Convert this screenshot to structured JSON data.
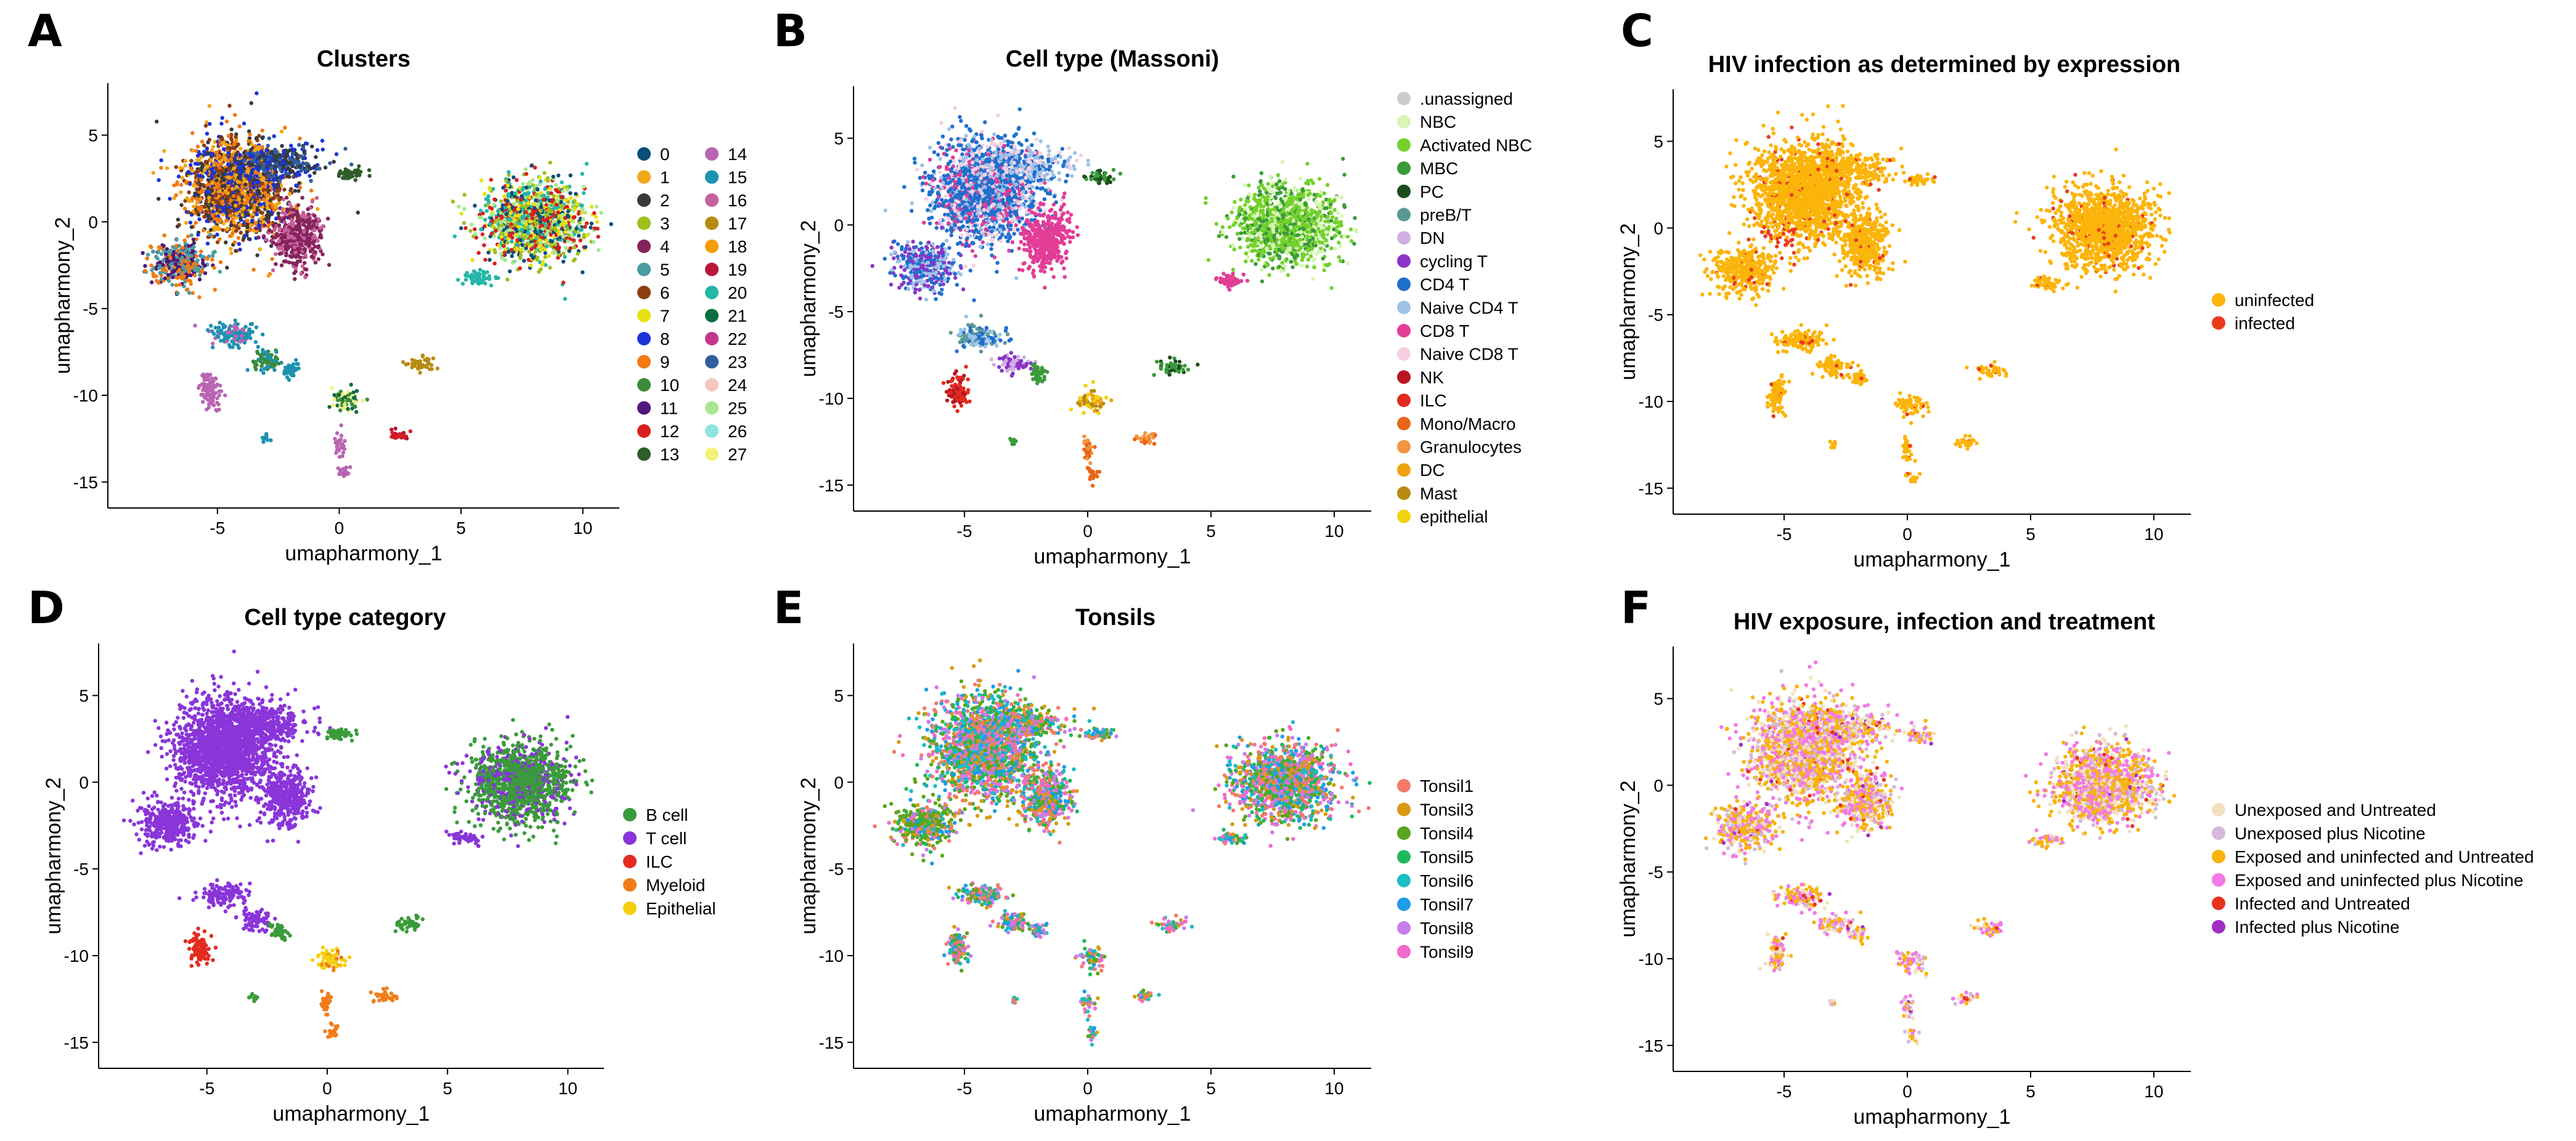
{
  "chart_data": [
    {
      "panel": "A",
      "type": "scatter",
      "title": "Clusters",
      "xlabel": "umapharmony_1",
      "ylabel": "umapharmony_2",
      "xlim": [
        -9.5,
        11.5
      ],
      "ylim": [
        -16.5,
        8
      ],
      "xticks": [
        -5,
        0,
        5,
        10
      ],
      "yticks": [
        5,
        0,
        -5,
        -10,
        -15
      ],
      "legend_columns": 2,
      "legend": [
        {
          "label": "0",
          "color": "#0b4f79"
        },
        {
          "label": "1",
          "color": "#f2a719"
        },
        {
          "label": "2",
          "color": "#383a3d"
        },
        {
          "label": "3",
          "color": "#9fc01f"
        },
        {
          "label": "4",
          "color": "#85245a"
        },
        {
          "label": "5",
          "color": "#4c9ca3"
        },
        {
          "label": "6",
          "color": "#8e3d13"
        },
        {
          "label": "7",
          "color": "#e7e114"
        },
        {
          "label": "8",
          "color": "#1b34d9"
        },
        {
          "label": "9",
          "color": "#f27a10"
        },
        {
          "label": "10",
          "color": "#3a8b3a"
        },
        {
          "label": "11",
          "color": "#50177c"
        },
        {
          "label": "12",
          "color": "#d92020"
        },
        {
          "label": "13",
          "color": "#2f5e2a"
        },
        {
          "label": "14",
          "color": "#b965b3"
        },
        {
          "label": "15",
          "color": "#1c92b1"
        },
        {
          "label": "16",
          "color": "#c7609e"
        },
        {
          "label": "17",
          "color": "#b58b10"
        },
        {
          "label": "18",
          "color": "#f59c0f"
        },
        {
          "label": "19",
          "color": "#b8173b"
        },
        {
          "label": "20",
          "color": "#25b6a8"
        },
        {
          "label": "21",
          "color": "#0c6e3f"
        },
        {
          "label": "22",
          "color": "#c2368e"
        },
        {
          "label": "23",
          "color": "#2f5f9c"
        },
        {
          "label": "24",
          "color": "#f4c7c0"
        },
        {
          "label": "25",
          "color": "#a9e88e"
        },
        {
          "label": "26",
          "color": "#8fe3e0"
        },
        {
          "label": "27",
          "color": "#f2f27b"
        }
      ]
    },
    {
      "panel": "B",
      "type": "scatter",
      "title": "Cell type (Massoni)",
      "xlabel": "umapharmony_1",
      "ylabel": "umapharmony_2",
      "xlim": [
        -9.5,
        11.5
      ],
      "ylim": [
        -16.5,
        8
      ],
      "xticks": [
        -5,
        0,
        5,
        10
      ],
      "yticks": [
        5,
        0,
        -5,
        -10,
        -15
      ],
      "legend": [
        {
          "label": ".unassigned",
          "color": "#cccccc"
        },
        {
          "label": "NBC",
          "color": "#d8f5b5"
        },
        {
          "label": "Activated NBC",
          "color": "#74d12c"
        },
        {
          "label": "MBC",
          "color": "#3a9b3a"
        },
        {
          "label": "PC",
          "color": "#1d4d1d"
        },
        {
          "label": "preB/T",
          "color": "#5a9a96"
        },
        {
          "label": "DN",
          "color": "#d0b0e4"
        },
        {
          "label": "cycling T",
          "color": "#8a35c9"
        },
        {
          "label": "CD4 T",
          "color": "#1f6fcf"
        },
        {
          "label": "Naive CD4 T",
          "color": "#9dc3e8"
        },
        {
          "label": "CD8 T",
          "color": "#e23d97"
        },
        {
          "label": "Naive CD8 T",
          "color": "#f6cfe2"
        },
        {
          "label": "NK",
          "color": "#b81622"
        },
        {
          "label": "ILC",
          "color": "#e32b1f"
        },
        {
          "label": "Mono/Macro",
          "color": "#e86617"
        },
        {
          "label": "Granulocytes",
          "color": "#f3953f"
        },
        {
          "label": "DC",
          "color": "#f0a30f"
        },
        {
          "label": "Mast",
          "color": "#b88a10"
        },
        {
          "label": "epithelial",
          "color": "#f0d20f"
        }
      ]
    },
    {
      "panel": "C",
      "type": "scatter",
      "title": "HIV infection as determined by expression",
      "xlabel": "umapharmony_1",
      "ylabel": "umapharmony_2",
      "xlim": [
        -9.5,
        11.5
      ],
      "ylim": [
        -16.5,
        8
      ],
      "xticks": [
        -5,
        0,
        5,
        10
      ],
      "yticks": [
        5,
        0,
        -5,
        -10,
        -15
      ],
      "legend": [
        {
          "label": "uninfected",
          "color": "#fbb40a"
        },
        {
          "label": "infected",
          "color": "#ea3c1c"
        }
      ]
    },
    {
      "panel": "D",
      "type": "scatter",
      "title": "Cell type category",
      "xlabel": "umapharmony_1",
      "ylabel": "umapharmony_2",
      "xlim": [
        -9.5,
        11.5
      ],
      "ylim": [
        -16.5,
        8
      ],
      "xticks": [
        -5,
        0,
        5,
        10
      ],
      "yticks": [
        5,
        0,
        -5,
        -10,
        -15
      ],
      "legend": [
        {
          "label": "B cell",
          "color": "#3a9b3a"
        },
        {
          "label": "T cell",
          "color": "#8a35d9"
        },
        {
          "label": "ILC",
          "color": "#e32b1f"
        },
        {
          "label": "Myeloid",
          "color": "#f07d18"
        },
        {
          "label": "Epithelial",
          "color": "#f5cf0f"
        }
      ]
    },
    {
      "panel": "E",
      "type": "scatter",
      "title": "Tonsils",
      "xlabel": "umapharmony_1",
      "ylabel": "umapharmony_2",
      "xlim": [
        -9.5,
        11.5
      ],
      "ylim": [
        -16.5,
        8
      ],
      "xticks": [
        -5,
        0,
        5,
        10
      ],
      "yticks": [
        5,
        0,
        -5,
        -10,
        -15
      ],
      "legend": [
        {
          "label": "Tonsil1",
          "color": "#f4796b"
        },
        {
          "label": "Tonsil3",
          "color": "#d99a14"
        },
        {
          "label": "Tonsil4",
          "color": "#5aa61c"
        },
        {
          "label": "Tonsil5",
          "color": "#1eb85a"
        },
        {
          "label": "Tonsil6",
          "color": "#1bbcc4"
        },
        {
          "label": "Tonsil7",
          "color": "#1e9ce8"
        },
        {
          "label": "Tonsil8",
          "color": "#c97cf0"
        },
        {
          "label": "Tonsil9",
          "color": "#f06cc8"
        }
      ]
    },
    {
      "panel": "F",
      "type": "scatter",
      "title": "HIV exposure, infection and treatment",
      "xlabel": "umapharmony_1",
      "ylabel": "umapharmony_2",
      "xlim": [
        -9.5,
        11.5
      ],
      "ylim": [
        -16.5,
        8
      ],
      "xticks": [
        -5,
        0,
        5,
        10
      ],
      "yticks": [
        5,
        0,
        -5,
        -10,
        -15
      ],
      "legend": [
        {
          "label": "Unexposed and Untreated",
          "color": "#f2e0c0"
        },
        {
          "label": "Unexposed plus Nicotine",
          "color": "#d4b9dc"
        },
        {
          "label": "Exposed and uninfected and Untreated",
          "color": "#f8b30c"
        },
        {
          "label": "Exposed and uninfected plus Nicotine",
          "color": "#f27ae6"
        },
        {
          "label": "Infected and Untreated",
          "color": "#e8331c"
        },
        {
          "label": "Infected plus Nicotine",
          "color": "#a12ec2"
        }
      ]
    }
  ]
}
